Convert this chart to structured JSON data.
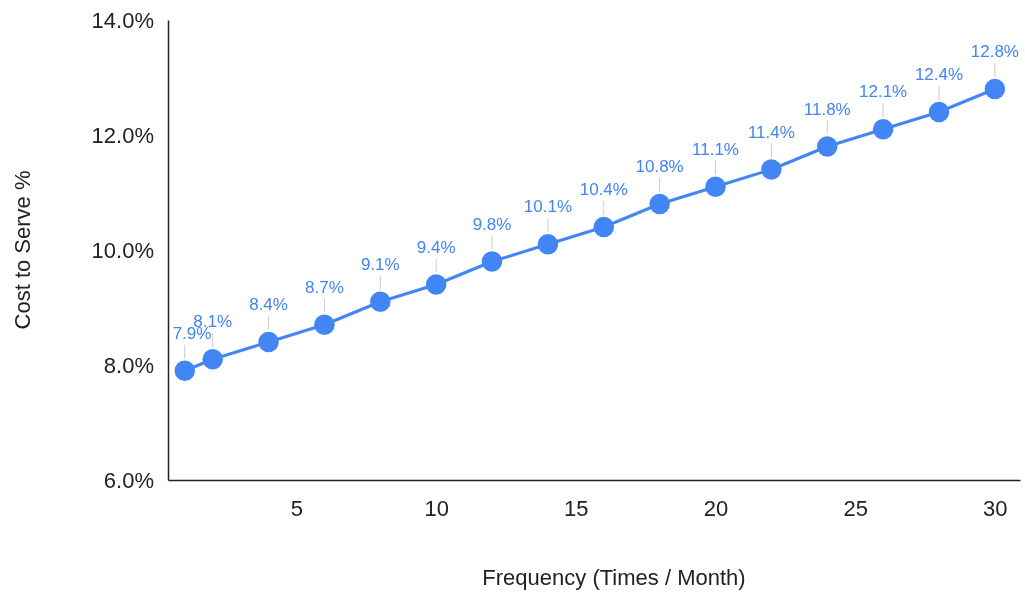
{
  "chart_data": {
    "type": "line",
    "xlabel": "Frequency (Times / Month)",
    "ylabel": "Cost to Serve %",
    "x": [
      1,
      2,
      4,
      6,
      8,
      10,
      12,
      14,
      16,
      18,
      20,
      22,
      24,
      26,
      28,
      30
    ],
    "series": [
      {
        "color": "#4285f4",
        "values": [
          7.9,
          8.1,
          8.4,
          8.7,
          9.1,
          9.4,
          9.8,
          10.1,
          10.4,
          10.8,
          11.1,
          11.4,
          11.8,
          12.1,
          12.4,
          12.8
        ],
        "value_labels": [
          "7.9%",
          "8.1%",
          "8.4%",
          "8.7%",
          "9.1%",
          "9.4%",
          "9.8%",
          "10.1%",
          "10.4%",
          "10.8%",
          "11.1%",
          "11.4%",
          "11.8%",
          "12.1%",
          "12.4%",
          "12.8%"
        ]
      }
    ],
    "xlim": [
      0.4,
      30.9
    ],
    "xticks": [
      5,
      10,
      15,
      20,
      25,
      30
    ],
    "ylim": [
      6,
      14
    ],
    "yticks": [
      {
        "value": 6,
        "label": "6.0%"
      },
      {
        "value": 8,
        "label": "8.0%"
      },
      {
        "value": 10,
        "label": "10.0%"
      },
      {
        "value": 12,
        "label": "12.0%"
      },
      {
        "value": 14,
        "label": "14.0%"
      }
    ],
    "grid": false,
    "marker": "circle",
    "line_style": "solid"
  }
}
